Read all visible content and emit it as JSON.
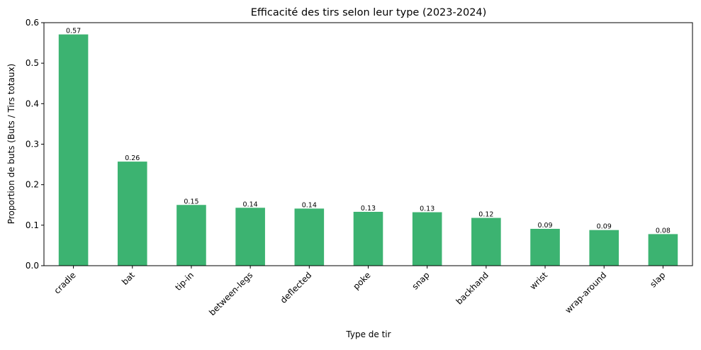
{
  "chart_data": {
    "type": "bar",
    "title": "Efficacité des tirs selon leur type (2023-2024)",
    "xlabel": "Type de tir",
    "ylabel": "Proportion de buts (Buts / Tirs totaux)",
    "categories": [
      "cradle",
      "bat",
      "tip-in",
      "between-legs",
      "deflected",
      "poke",
      "snap",
      "backhand",
      "wrist",
      "wrap-around",
      "slap"
    ],
    "values": [
      0.571,
      0.257,
      0.15,
      0.143,
      0.141,
      0.133,
      0.132,
      0.118,
      0.091,
      0.088,
      0.078
    ],
    "data_labels": [
      "0.57",
      "0.26",
      "0.15",
      "0.14",
      "0.14",
      "0.13",
      "0.13",
      "0.12",
      "0.09",
      "0.09",
      "0.08"
    ],
    "ylim": [
      0,
      0.6
    ],
    "yticks": [
      "0.0",
      "0.1",
      "0.2",
      "0.3",
      "0.4",
      "0.5",
      "0.6"
    ],
    "grid": false,
    "bar_color": "#3cb371"
  }
}
